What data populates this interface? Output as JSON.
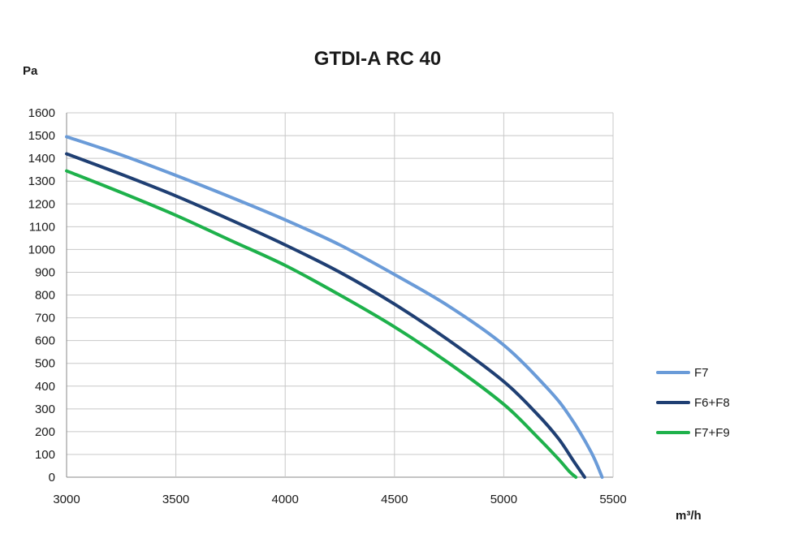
{
  "chart_data": {
    "type": "line",
    "title": "GTDI-A RC 40",
    "ylabel": "Pa",
    "xlabel": "m³/h",
    "xlim": [
      3000,
      5500
    ],
    "ylim": [
      0,
      1600
    ],
    "x_ticks": [
      "3000",
      "3500",
      "4000",
      "4500",
      "5000",
      "5500"
    ],
    "y_ticks": [
      "0",
      "100",
      "200",
      "300",
      "400",
      "500",
      "600",
      "700",
      "800",
      "900",
      "1000",
      "1100",
      "1200",
      "1300",
      "1400",
      "1500",
      "1600"
    ],
    "grid": true,
    "legend_position": "right",
    "series": [
      {
        "name": "F7",
        "color": "#6a9bd8",
        "x": [
          3000,
          3250,
          3500,
          3750,
          4000,
          4250,
          4500,
          4750,
          5000,
          5200,
          5300,
          5400,
          5450
        ],
        "y": [
          1495,
          1415,
          1325,
          1230,
          1130,
          1020,
          890,
          750,
          580,
          390,
          270,
          110,
          0
        ]
      },
      {
        "name": "F6+F8",
        "color": "#1f3f73",
        "x": [
          3000,
          3250,
          3500,
          3750,
          4000,
          4250,
          4500,
          4750,
          5000,
          5150,
          5250,
          5320,
          5370
        ],
        "y": [
          1420,
          1330,
          1235,
          1130,
          1020,
          900,
          760,
          600,
          420,
          280,
          170,
          70,
          0
        ]
      },
      {
        "name": "F7+F9",
        "color": "#1eb14b",
        "x": [
          3000,
          3250,
          3500,
          3750,
          4000,
          4250,
          4500,
          4750,
          5000,
          5150,
          5250,
          5300,
          5330
        ],
        "y": [
          1345,
          1250,
          1150,
          1040,
          930,
          800,
          660,
          500,
          320,
          180,
          80,
          25,
          0
        ]
      }
    ]
  }
}
